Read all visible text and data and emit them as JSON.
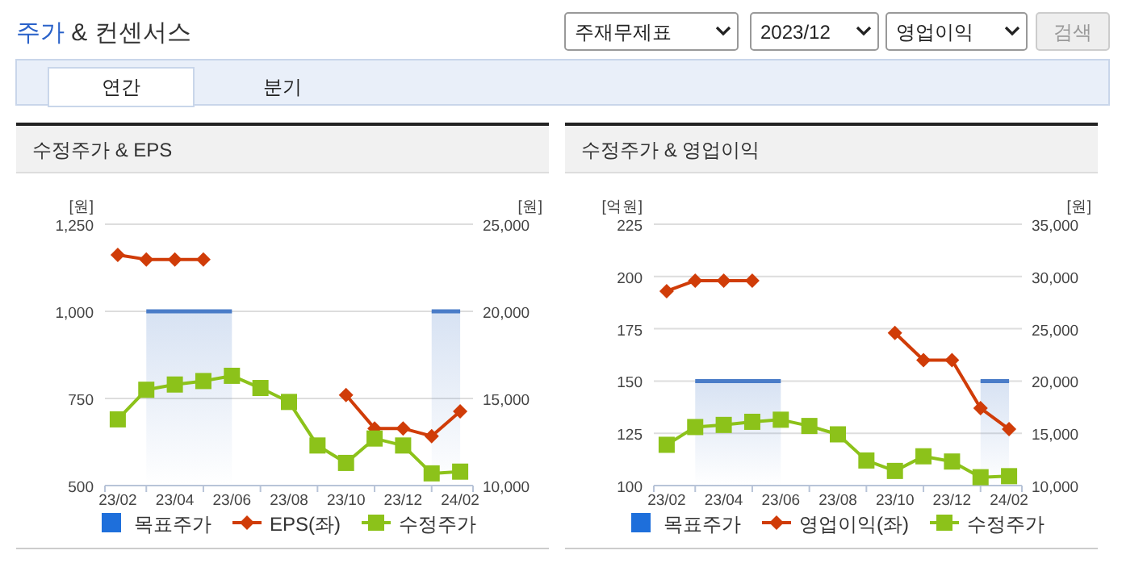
{
  "chart_data": [
    {
      "type": "other",
      "title": "주가 & 컨센서스",
      "annotations": [
        "주재무제표",
        "2023/12",
        "영업이익",
        "검색",
        "연간",
        "분기"
      ]
    },
    {
      "type": "line",
      "title": "수정주가 & EPS",
      "ylabel": "[원]",
      "y2label": "[원]",
      "categories": [
        "23/02",
        null,
        "23/04",
        null,
        "23/06",
        null,
        "23/08",
        null,
        "23/10",
        null,
        "23/12",
        null,
        "24/02"
      ],
      "ylim": [
        500,
        1250
      ],
      "yticks": [
        500,
        750,
        {
          "value": 1000,
          "label": "1,000"
        },
        {
          "value": 1250,
          "label": "1,250"
        }
      ],
      "y2lim": [
        10000,
        25000
      ],
      "y2ticks": [
        {
          "value": 10000,
          "label": "10,000"
        },
        {
          "value": 15000,
          "label": "15,000"
        },
        {
          "value": 20000,
          "label": "20,000"
        },
        {
          "value": 25000,
          "label": "25,000"
        }
      ],
      "grid": "y",
      "legend": "bottom",
      "series": [
        {
          "name": "목표주가",
          "type": "area",
          "axis": "y2",
          "color": "#4a7cc8",
          "values": [
            null,
            20000,
            20000,
            20000,
            20000,
            null,
            null,
            null,
            null,
            null,
            null,
            20000,
            20000
          ]
        },
        {
          "name": "EPS(좌)",
          "type": "line",
          "marker": "diamond",
          "color": "#d03c08",
          "values": [
            1162,
            1149,
            1149,
            1149,
            null,
            null,
            null,
            null,
            760,
            664,
            664,
            642,
            713
          ]
        },
        {
          "name": "수정주가",
          "type": "line",
          "marker": "square",
          "axis": "y2",
          "color": "#8cc21a",
          "values": [
            13800,
            15500,
            15800,
            16000,
            16300,
            15600,
            14800,
            12300,
            11300,
            12700,
            12300,
            10700,
            10800
          ]
        }
      ]
    },
    {
      "type": "line",
      "title": "수정주가 & 영업이익",
      "ylabel": "[억원]",
      "y2label": "[원]",
      "categories": [
        "23/02",
        null,
        "23/04",
        null,
        "23/06",
        null,
        "23/08",
        null,
        "23/10",
        null,
        "23/12",
        null,
        "24/02"
      ],
      "ylim": [
        100,
        225
      ],
      "yticks": [
        100,
        125,
        150,
        175,
        200,
        225
      ],
      "y2lim": [
        10000,
        35000
      ],
      "y2ticks": [
        {
          "value": 10000,
          "label": "10,000"
        },
        {
          "value": 15000,
          "label": "15,000"
        },
        {
          "value": 20000,
          "label": "20,000"
        },
        {
          "value": 25000,
          "label": "25,000"
        },
        {
          "value": 30000,
          "label": "30,000"
        },
        {
          "value": 35000,
          "label": "35,000"
        }
      ],
      "grid": "y",
      "legend": "bottom",
      "series": [
        {
          "name": "목표주가",
          "type": "area",
          "axis": "y2",
          "color": "#4a7cc8",
          "values": [
            null,
            20000,
            20000,
            20000,
            20000,
            null,
            null,
            null,
            null,
            null,
            null,
            20000,
            20000
          ]
        },
        {
          "name": "영업이익(좌)",
          "type": "line",
          "marker": "diamond",
          "color": "#d03c08",
          "values": [
            193,
            198,
            198,
            198,
            null,
            null,
            null,
            null,
            173,
            160,
            160,
            137,
            127
          ]
        },
        {
          "name": "수정주가",
          "type": "line",
          "marker": "square",
          "axis": "y2",
          "color": "#8cc21a",
          "values": [
            13900,
            15600,
            15800,
            16100,
            16300,
            15700,
            14900,
            12400,
            11400,
            12800,
            12300,
            10800,
            10900
          ]
        }
      ]
    }
  ]
}
